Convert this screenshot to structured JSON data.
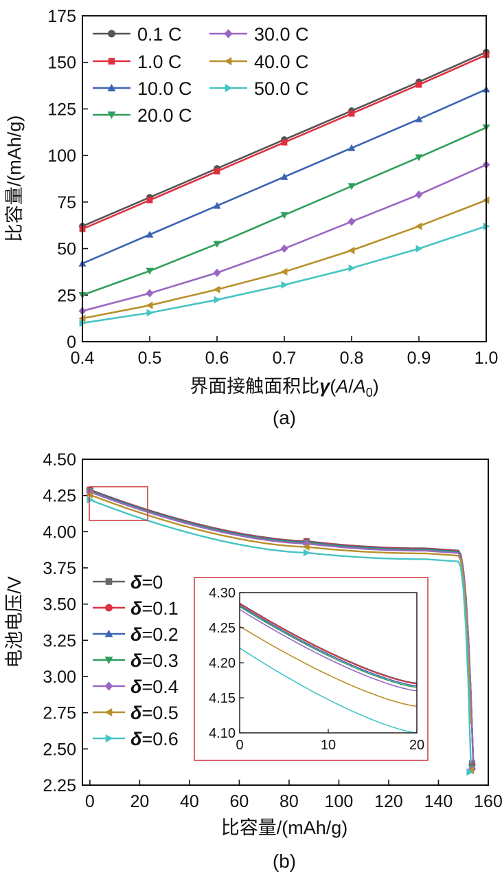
{
  "chart_data": [
    {
      "type": "line",
      "caption": "(a)",
      "xlabel_prefix": "界面接触面积比",
      "xlabel_symbol": "γ",
      "xlabel_suffix_open": "(",
      "xlabel_suffix_a": "A",
      "xlabel_suffix_slash": "/",
      "xlabel_suffix_a0": "A",
      "xlabel_suffix_sub": "0",
      "xlabel_suffix_close": ")",
      "ylabel": "比容量/(mAh/g)",
      "xlim": [
        0.4,
        1.0
      ],
      "ylim": [
        0,
        175
      ],
      "xticks": [
        "0.4",
        "0.5",
        "0.6",
        "0.7",
        "0.8",
        "0.9",
        "1.0"
      ],
      "yticks": [
        "0",
        "25",
        "50",
        "75",
        "100",
        "125",
        "150",
        "175"
      ],
      "x": [
        0.4,
        0.5,
        0.6,
        0.7,
        0.8,
        0.9,
        1.0
      ],
      "series": [
        {
          "name": "0.1 C",
          "color": "#555555",
          "marker": "circle",
          "values": [
            62,
            77.5,
            93,
            108.5,
            124,
            139.5,
            155.5
          ]
        },
        {
          "name": "1.0 C",
          "color": "#e03040",
          "marker": "square",
          "values": [
            60.5,
            76,
            91.5,
            107,
            122.5,
            138,
            154
          ]
        },
        {
          "name": "10.0 C",
          "color": "#3a64b4",
          "marker": "triangle-up",
          "values": [
            42,
            57.5,
            73,
            88.5,
            104,
            119.5,
            135.5
          ]
        },
        {
          "name": "20.0 C",
          "color": "#2f9e5a",
          "marker": "triangle-down",
          "values": [
            25,
            38,
            52.5,
            68,
            83.5,
            99,
            115
          ]
        },
        {
          "name": "30.0 C",
          "color": "#9b66c2",
          "marker": "diamond",
          "values": [
            16.5,
            26,
            37,
            50,
            64.5,
            79,
            95
          ]
        },
        {
          "name": "40.0 C",
          "color": "#b8902a",
          "marker": "triangle-left",
          "values": [
            12.5,
            19.5,
            28,
            37.5,
            49,
            62,
            76
          ]
        },
        {
          "name": "50.0 C",
          "color": "#46c4c4",
          "marker": "triangle-right",
          "values": [
            10,
            15.5,
            22.5,
            30.5,
            39.5,
            50,
            62
          ]
        }
      ],
      "legend_position": "top-left"
    },
    {
      "type": "line",
      "caption": "(b)",
      "xlabel": "比容量/(mAh/g)",
      "ylabel": "电池电压/V",
      "xlim": [
        -3,
        160
      ],
      "ylim": [
        2.25,
        4.5
      ],
      "xticks": [
        "0",
        "20",
        "40",
        "60",
        "80",
        "100",
        "120",
        "140",
        "160"
      ],
      "yticks": [
        "2.25",
        "2.50",
        "2.75",
        "3.00",
        "3.25",
        "3.50",
        "3.75",
        "4.00",
        "4.25",
        "4.50"
      ],
      "legend_position": "middle-left",
      "series": [
        {
          "name_symbol": "δ",
          "name_value": "=0",
          "color": "#666666",
          "marker": "square",
          "v_start": 4.29,
          "v_87": 3.935,
          "v_plateau": 3.885,
          "x_end": 154
        },
        {
          "name_symbol": "δ",
          "name_value": "=0.1",
          "color": "#e03040",
          "marker": "circle",
          "v_start": 4.288,
          "v_87": 3.932,
          "v_plateau": 3.882,
          "x_end": 154
        },
        {
          "name_symbol": "δ",
          "name_value": "=0.2",
          "color": "#3a64b4",
          "marker": "triangle-up",
          "v_start": 4.285,
          "v_87": 3.928,
          "v_plateau": 3.878,
          "x_end": 154
        },
        {
          "name_symbol": "δ",
          "name_value": "=0.3",
          "color": "#2f9e5a",
          "marker": "triangle-down",
          "v_start": 4.28,
          "v_87": 3.924,
          "v_plateau": 3.874,
          "x_end": 154
        },
        {
          "name_symbol": "δ",
          "name_value": "=0.4",
          "color": "#9b66c2",
          "marker": "diamond",
          "v_start": 4.275,
          "v_87": 3.918,
          "v_plateau": 3.868,
          "x_end": 154
        },
        {
          "name_symbol": "δ",
          "name_value": "=0.5",
          "color": "#b8902a",
          "marker": "triangle-left",
          "v_start": 4.255,
          "v_87": 3.895,
          "v_plateau": 3.85,
          "x_end": 153.5
        },
        {
          "name_symbol": "δ",
          "name_value": "=0.6",
          "color": "#46c4c4",
          "marker": "triangle-right",
          "v_start": 4.22,
          "v_87": 3.855,
          "v_plateau": 3.81,
          "x_end": 153
        }
      ],
      "inset": {
        "xlim": [
          0,
          20
        ],
        "ylim": [
          4.1,
          4.3
        ],
        "xticks": [
          "0",
          "10",
          "20"
        ],
        "yticks": [
          "4.10",
          "4.15",
          "4.20",
          "4.25",
          "4.30"
        ],
        "lines": [
          {
            "color": "#666666",
            "y0": 4.285,
            "y20": 4.171
          },
          {
            "color": "#e03040",
            "y0": 4.284,
            "y20": 4.17
          },
          {
            "color": "#3a64b4",
            "y0": 4.282,
            "y20": 4.167
          },
          {
            "color": "#2f9e5a",
            "y0": 4.28,
            "y20": 4.165
          },
          {
            "color": "#9b66c2",
            "y0": 4.276,
            "y20": 4.16
          },
          {
            "color": "#b8902a",
            "y0": 4.252,
            "y20": 4.138
          },
          {
            "color": "#46c4c4",
            "y0": 4.221,
            "y20": 4.1
          }
        ]
      }
    }
  ]
}
